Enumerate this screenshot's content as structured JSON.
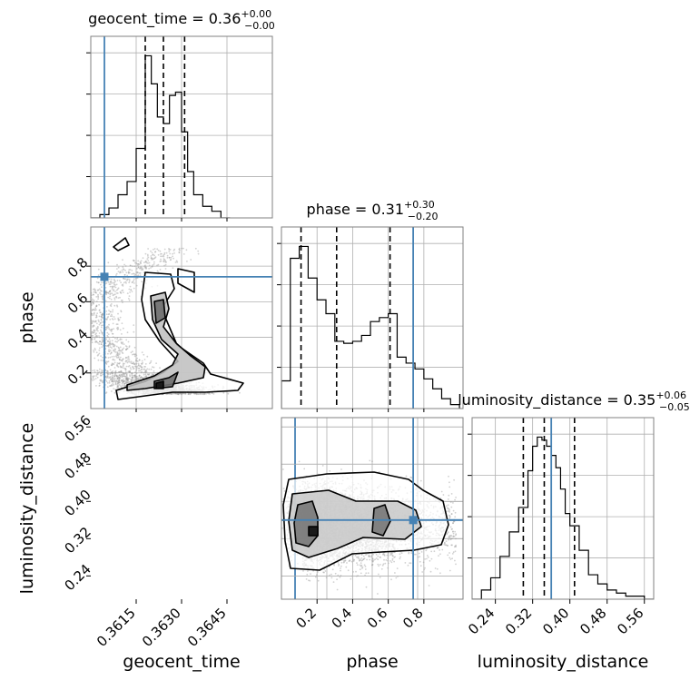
{
  "chart_data": {
    "type": "corner",
    "parameters": [
      "geocent_time",
      "phase",
      "luminosity_distance"
    ],
    "titles": [
      {
        "param": "geocent_time",
        "prefix": "geocent_time = ",
        "median": "0.36",
        "plus": "+0.00",
        "minus": "−0.00"
      },
      {
        "param": "phase",
        "prefix": "phase = ",
        "median": "0.31",
        "plus": "+0.30",
        "minus": "−0.20"
      },
      {
        "param": "luminosity_distance",
        "prefix": "luminosity_distance = ",
        "median": "0.35",
        "plus": "+0.06",
        "minus": "−0.05"
      }
    ],
    "axes": {
      "geocent_time": {
        "range": [
          0.36,
          0.366
        ],
        "ticks": [
          0.3615,
          0.363,
          0.3645
        ],
        "tick_labels": [
          "0.3615",
          "0.3630",
          "0.3645"
        ],
        "label": "geocent_time"
      },
      "phase": {
        "range": [
          0.0,
          1.02
        ],
        "ticks": [
          0.2,
          0.4,
          0.6,
          0.8
        ],
        "tick_labels": [
          "0.2",
          "0.4",
          "0.6",
          "0.8"
        ],
        "label": "phase"
      },
      "luminosity_distance": {
        "range": [
          0.19,
          0.58
        ],
        "ticks": [
          0.24,
          0.32,
          0.4,
          0.48,
          0.56
        ],
        "tick_labels": [
          "0.24",
          "0.32",
          "0.40",
          "0.48",
          "0.56"
        ],
        "label": "luminosity_distance"
      }
    },
    "truths": {
      "geocent_time": 0.36045,
      "phase": 0.74,
      "luminosity_distance": 0.36
    },
    "quantiles": {
      "geocent_time": [
        0.3618,
        0.3624,
        0.3631
      ],
      "phase": [
        0.11,
        0.31,
        0.61
      ],
      "luminosity_distance": [
        0.3,
        0.345,
        0.41
      ]
    },
    "histograms": {
      "geocent_time": {
        "edges": [
          0.36,
          0.3603,
          0.3606,
          0.3609,
          0.3612,
          0.3615,
          0.3618,
          0.362,
          0.3622,
          0.3624,
          0.3626,
          0.3628,
          0.363,
          0.3632,
          0.3634,
          0.3637,
          0.364,
          0.3643,
          0.3646
        ],
        "counts": [
          0,
          2,
          6,
          14,
          22,
          42,
          98,
          81,
          61,
          57,
          74,
          76,
          52,
          28,
          14,
          7,
          4,
          0
        ]
      },
      "phase": {
        "edges": [
          0.0,
          0.05,
          0.1,
          0.15,
          0.2,
          0.25,
          0.3,
          0.35,
          0.4,
          0.45,
          0.5,
          0.55,
          0.6,
          0.65,
          0.7,
          0.75,
          0.8,
          0.85,
          0.9,
          0.95,
          1.0
        ],
        "counts": [
          14,
          76,
          82,
          66,
          55,
          48,
          34,
          33,
          34,
          37,
          44,
          46,
          48,
          26,
          23,
          20,
          15,
          10,
          5,
          2
        ]
      },
      "luminosity_distance": {
        "edges": [
          0.19,
          0.21,
          0.23,
          0.25,
          0.27,
          0.29,
          0.31,
          0.32,
          0.33,
          0.34,
          0.35,
          0.36,
          0.37,
          0.38,
          0.39,
          0.4,
          0.42,
          0.44,
          0.46,
          0.48,
          0.5,
          0.52,
          0.54,
          0.56,
          0.58
        ],
        "counts": [
          0,
          3,
          7,
          14,
          22,
          30,
          42,
          50,
          53,
          52,
          50,
          47,
          43,
          36,
          28,
          24,
          16,
          8,
          5,
          3,
          2,
          1,
          1,
          0
        ]
      }
    },
    "contour_levels": 3
  }
}
